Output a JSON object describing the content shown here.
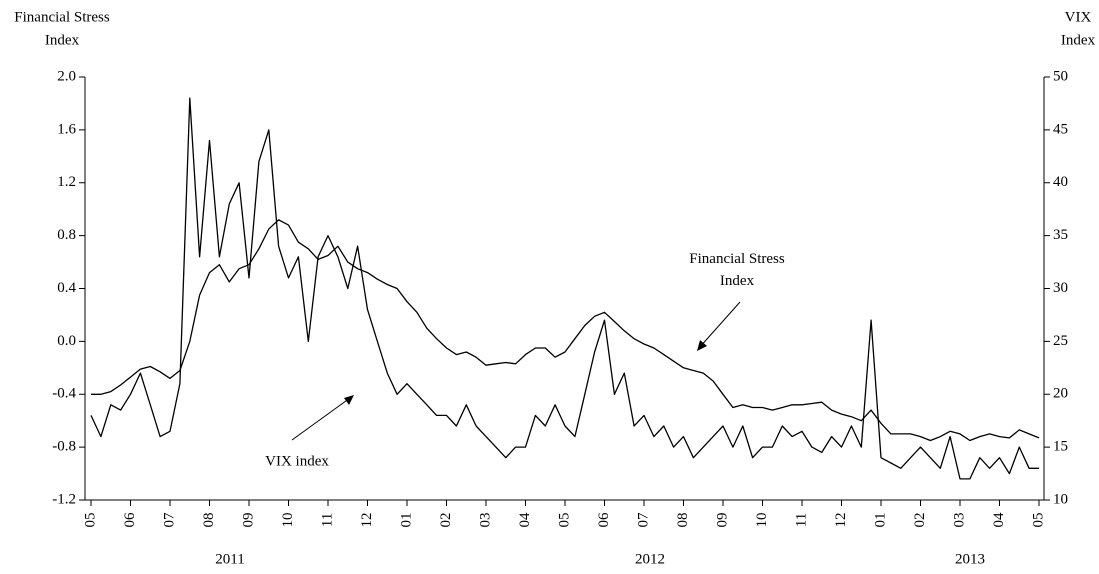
{
  "chart_data": {
    "type": "line",
    "ylabel": [
      "Financial Stress",
      "Index"
    ],
    "y2label": [
      "VIX",
      "Index"
    ],
    "categories": [
      "05",
      null,
      null,
      null,
      "06",
      null,
      null,
      null,
      "07",
      null,
      null,
      null,
      "08",
      null,
      null,
      null,
      "09",
      null,
      null,
      null,
      "10",
      null,
      null,
      null,
      "11",
      null,
      null,
      null,
      "12",
      null,
      null,
      null,
      "01",
      null,
      null,
      null,
      "02",
      null,
      null,
      null,
      "03",
      null,
      null,
      null,
      "04",
      null,
      null,
      null,
      "05",
      null,
      null,
      null,
      "06",
      null,
      null,
      null,
      "07",
      null,
      null,
      null,
      "08",
      null,
      null,
      null,
      "09",
      null,
      null,
      null,
      "10",
      null,
      null,
      null,
      "11",
      null,
      null,
      null,
      "12",
      null,
      null,
      null,
      "01",
      null,
      null,
      null,
      "02",
      null,
      null,
      null,
      "03",
      null,
      null,
      null,
      "04",
      null,
      null,
      null,
      "05"
    ],
    "x_group_labels": [
      "2011",
      "2012",
      "2013"
    ],
    "series": [
      {
        "name": "Financial Stress Index",
        "color": "#000000",
        "axis": "y",
        "values": [
          -0.4,
          -0.4,
          -0.38,
          -0.33,
          -0.27,
          -0.21,
          -0.19,
          -0.23,
          -0.28,
          -0.22,
          0.0,
          0.35,
          0.52,
          0.58,
          0.45,
          0.55,
          0.58,
          0.7,
          0.85,
          0.92,
          0.88,
          0.75,
          0.7,
          0.62,
          0.65,
          0.72,
          0.6,
          0.55,
          0.52,
          0.47,
          0.43,
          0.4,
          0.3,
          0.22,
          0.1,
          0.02,
          -0.05,
          -0.1,
          -0.08,
          -0.12,
          -0.18,
          -0.17,
          -0.16,
          -0.17,
          -0.1,
          -0.05,
          -0.05,
          -0.12,
          -0.08,
          0.02,
          0.12,
          0.19,
          0.22,
          0.15,
          0.08,
          0.02,
          -0.02,
          -0.05,
          -0.1,
          -0.15,
          -0.2,
          -0.22,
          -0.24,
          -0.3,
          -0.4,
          -0.5,
          -0.48,
          -0.5,
          -0.5,
          -0.52,
          -0.5,
          -0.48,
          -0.48,
          -0.47,
          -0.46,
          -0.52,
          -0.55,
          -0.57,
          -0.6,
          -0.52,
          -0.62,
          -0.7,
          -0.7,
          -0.7,
          -0.72,
          -0.75,
          -0.72,
          -0.68,
          -0.7,
          -0.75,
          -0.72,
          -0.7,
          -0.72,
          -0.73,
          -0.67,
          -0.7,
          -0.73
        ]
      },
      {
        "name": "VIX index",
        "color": "#000000",
        "axis": "y2",
        "values": [
          18,
          16,
          19,
          18.5,
          20,
          22,
          19,
          16,
          16.5,
          21,
          48,
          33,
          44,
          33,
          38,
          40,
          31,
          42,
          45,
          34,
          31,
          33,
          25,
          33,
          35,
          33,
          30,
          34,
          28,
          25,
          22,
          20,
          21,
          20,
          19,
          18,
          18,
          17,
          19,
          17,
          16,
          15,
          14,
          15,
          15,
          18,
          17,
          19,
          17,
          16,
          20,
          24,
          27,
          20,
          22,
          17,
          18,
          16,
          17,
          15,
          16,
          14,
          15,
          16,
          17,
          15,
          17,
          14,
          15,
          15,
          17,
          16,
          16.5,
          15,
          14.5,
          16,
          15,
          17,
          15,
          27,
          14,
          13.5,
          13,
          14,
          15,
          14,
          13,
          16,
          12,
          12,
          14,
          13,
          14,
          12.5,
          15,
          13,
          13
        ]
      }
    ],
    "ylim": [
      -1.2,
      2.0
    ],
    "yticks": [
      {
        "value": 2.0,
        "label": "2.0"
      },
      1.6,
      1.2,
      0.8,
      0.4,
      {
        "value": 0.0,
        "label": "0.0"
      },
      -0.4,
      -0.8,
      -1.2
    ],
    "y2lim": [
      10,
      50
    ],
    "y2ticks": [
      50,
      45,
      40,
      35,
      30,
      25,
      20,
      15,
      10
    ],
    "grid": false
  }
}
